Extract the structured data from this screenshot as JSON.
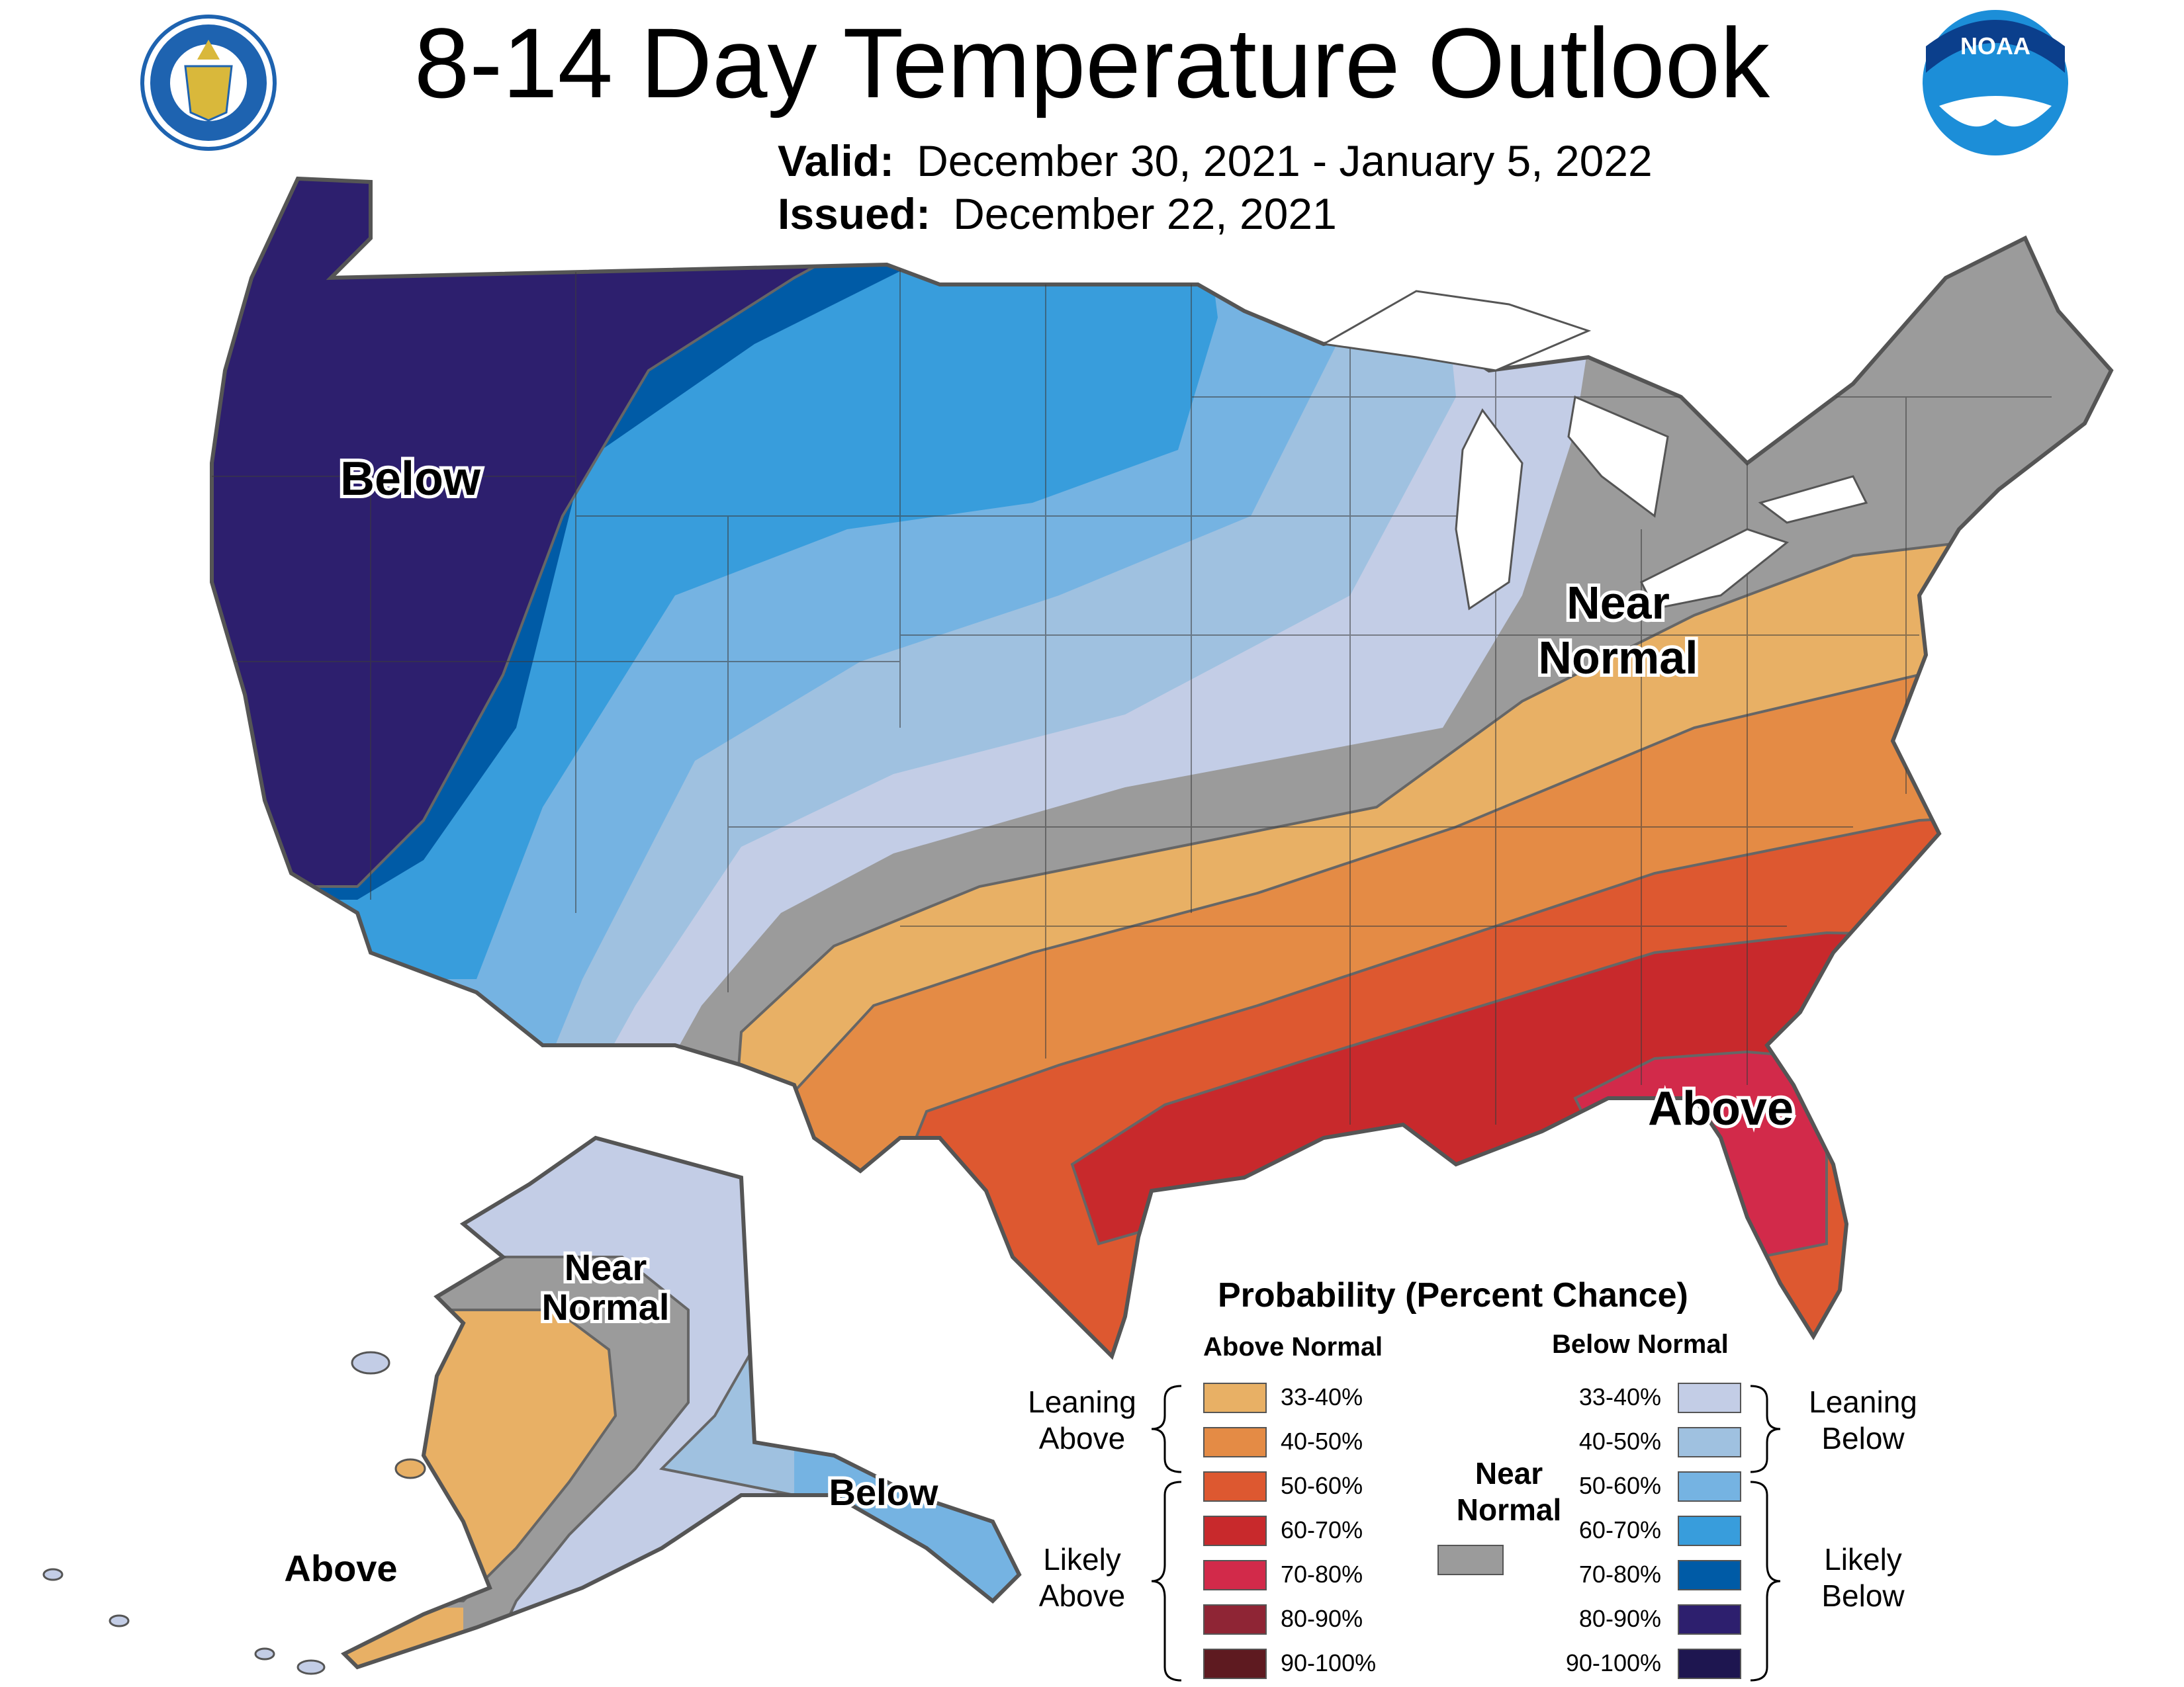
{
  "title": "8-14 Day Temperature Outlook",
  "valid_label": "Valid:",
  "valid_dates": "December 30, 2021 - January 5, 2022",
  "issued_label": "Issued:",
  "issued_date": "December 22, 2021",
  "logos": {
    "left": "seal-of-department-of-commerce",
    "right": "noaa-logo",
    "noaa_text": "NOAA"
  },
  "map_labels": {
    "below": "Below",
    "near_normal_line1": "Near",
    "near_normal_line2": "Normal",
    "above": "Above",
    "ak_near_line1": "Near",
    "ak_near_line2": "Normal",
    "ak_above": "Above",
    "ak_below": "Below"
  },
  "legend": {
    "title": "Probability (Percent Chance)",
    "above_header": "Above Normal",
    "below_header": "Below Normal",
    "near_normal_line1": "Near",
    "near_normal_line2": "Normal",
    "near_color": "#9b9b9b",
    "leaning_above_1": "Leaning",
    "leaning_above_2": "Above",
    "likely_above_1": "Likely",
    "likely_above_2": "Above",
    "leaning_below_1": "Leaning",
    "leaning_below_2": "Below",
    "likely_below_1": "Likely",
    "likely_below_2": "Below",
    "above": [
      {
        "label": "33-40%",
        "color": "#e8b065"
      },
      {
        "label": "40-50%",
        "color": "#e48b45"
      },
      {
        "label": "50-60%",
        "color": "#dd5830"
      },
      {
        "label": "60-70%",
        "color": "#c8292c"
      },
      {
        "label": "70-80%",
        "color": "#d22a4a"
      },
      {
        "label": "80-90%",
        "color": "#8f2535"
      },
      {
        "label": "90-100%",
        "color": "#5e1a20"
      }
    ],
    "below": [
      {
        "label": "33-40%",
        "color": "#c3cde6"
      },
      {
        "label": "40-50%",
        "color": "#9fc1e0"
      },
      {
        "label": "50-60%",
        "color": "#75b3e2"
      },
      {
        "label": "60-70%",
        "color": "#389ddc"
      },
      {
        "label": "70-80%",
        "color": "#005ba6"
      },
      {
        "label": "80-90%",
        "color": "#2d1f6e"
      },
      {
        "label": "90-100%",
        "color": "#1e1650"
      }
    ]
  }
}
